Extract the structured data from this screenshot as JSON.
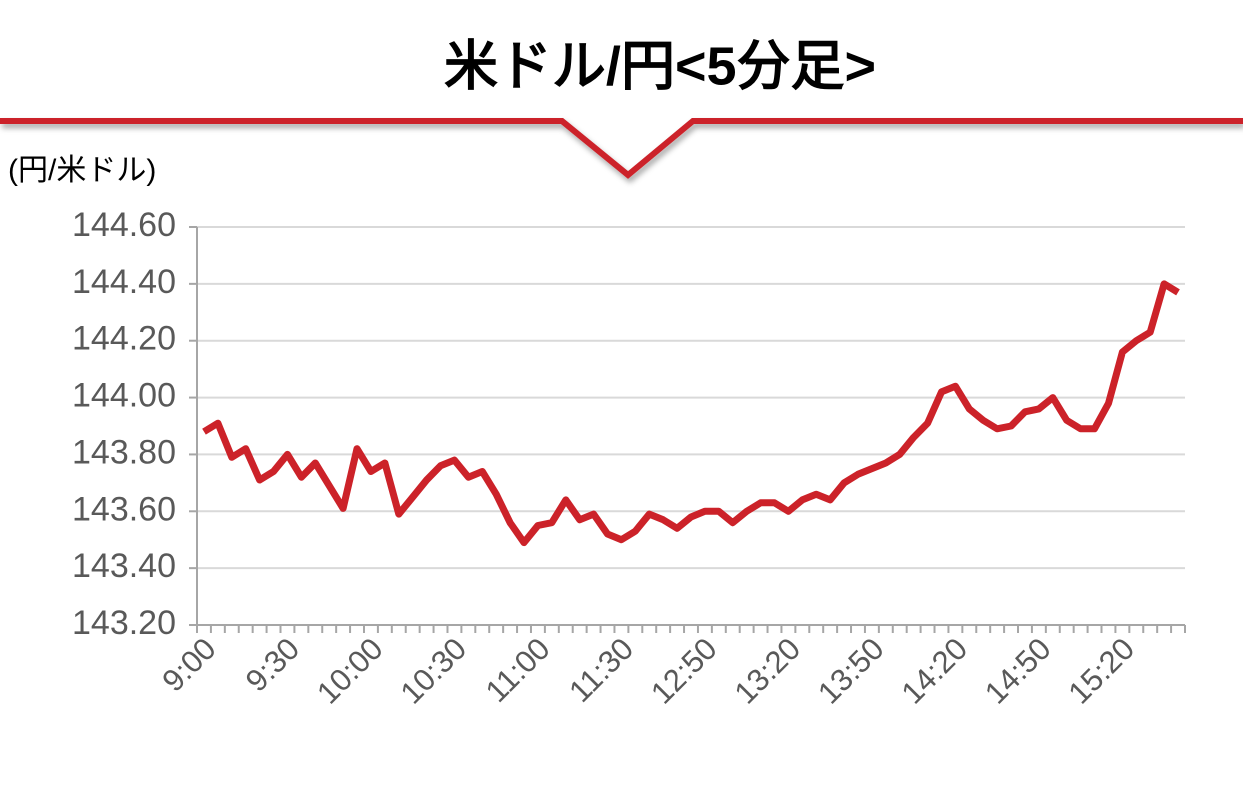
{
  "chart_data": {
    "type": "line",
    "title": "米ドル/円<5分足>",
    "y_label": "(円/米ドル)",
    "categories": [
      "9:00",
      null,
      null,
      null,
      null,
      null,
      "9:30",
      null,
      null,
      null,
      null,
      null,
      "10:00",
      null,
      null,
      null,
      null,
      null,
      "10:30",
      null,
      null,
      null,
      null,
      null,
      "11:00",
      null,
      null,
      null,
      null,
      null,
      "11:30",
      null,
      null,
      null,
      null,
      null,
      "12:50",
      null,
      null,
      null,
      null,
      null,
      "13:20",
      null,
      null,
      null,
      null,
      null,
      "13:50",
      null,
      null,
      null,
      null,
      null,
      "14:20",
      null,
      null,
      null,
      null,
      null,
      "14:50",
      null,
      null,
      null,
      null,
      null,
      "15:20",
      null,
      null,
      null,
      null
    ],
    "values": [
      143.88,
      143.91,
      143.79,
      143.82,
      143.71,
      143.74,
      143.8,
      143.72,
      143.77,
      143.69,
      143.61,
      143.82,
      143.74,
      143.77,
      143.59,
      143.65,
      143.71,
      143.76,
      143.78,
      143.72,
      143.74,
      143.66,
      143.56,
      143.49,
      143.55,
      143.56,
      143.64,
      143.57,
      143.59,
      143.52,
      143.5,
      143.53,
      143.59,
      143.57,
      143.54,
      143.58,
      143.6,
      143.6,
      143.56,
      143.6,
      143.63,
      143.63,
      143.6,
      143.64,
      143.66,
      143.64,
      143.7,
      143.73,
      143.75,
      143.77,
      143.8,
      143.86,
      143.91,
      144.02,
      144.04,
      143.96,
      143.92,
      143.89,
      143.9,
      143.95,
      143.96,
      144.0,
      143.92,
      143.89,
      143.89,
      143.98,
      144.16,
      144.2,
      144.23,
      144.4,
      144.37
    ],
    "color": "#cc2229",
    "ylim": [
      143.2,
      144.6
    ],
    "yticks": [
      {
        "value": 143.2,
        "label": "143.20"
      },
      {
        "value": 143.4,
        "label": "143.40"
      },
      {
        "value": 143.6,
        "label": "143.60"
      },
      {
        "value": 143.8,
        "label": "143.80"
      },
      {
        "value": 144.0,
        "label": "144.00"
      },
      {
        "value": 144.2,
        "label": "144.20"
      },
      {
        "value": 144.4,
        "label": "144.40"
      },
      {
        "value": 144.6,
        "label": "144.60"
      }
    ],
    "grid": true
  }
}
